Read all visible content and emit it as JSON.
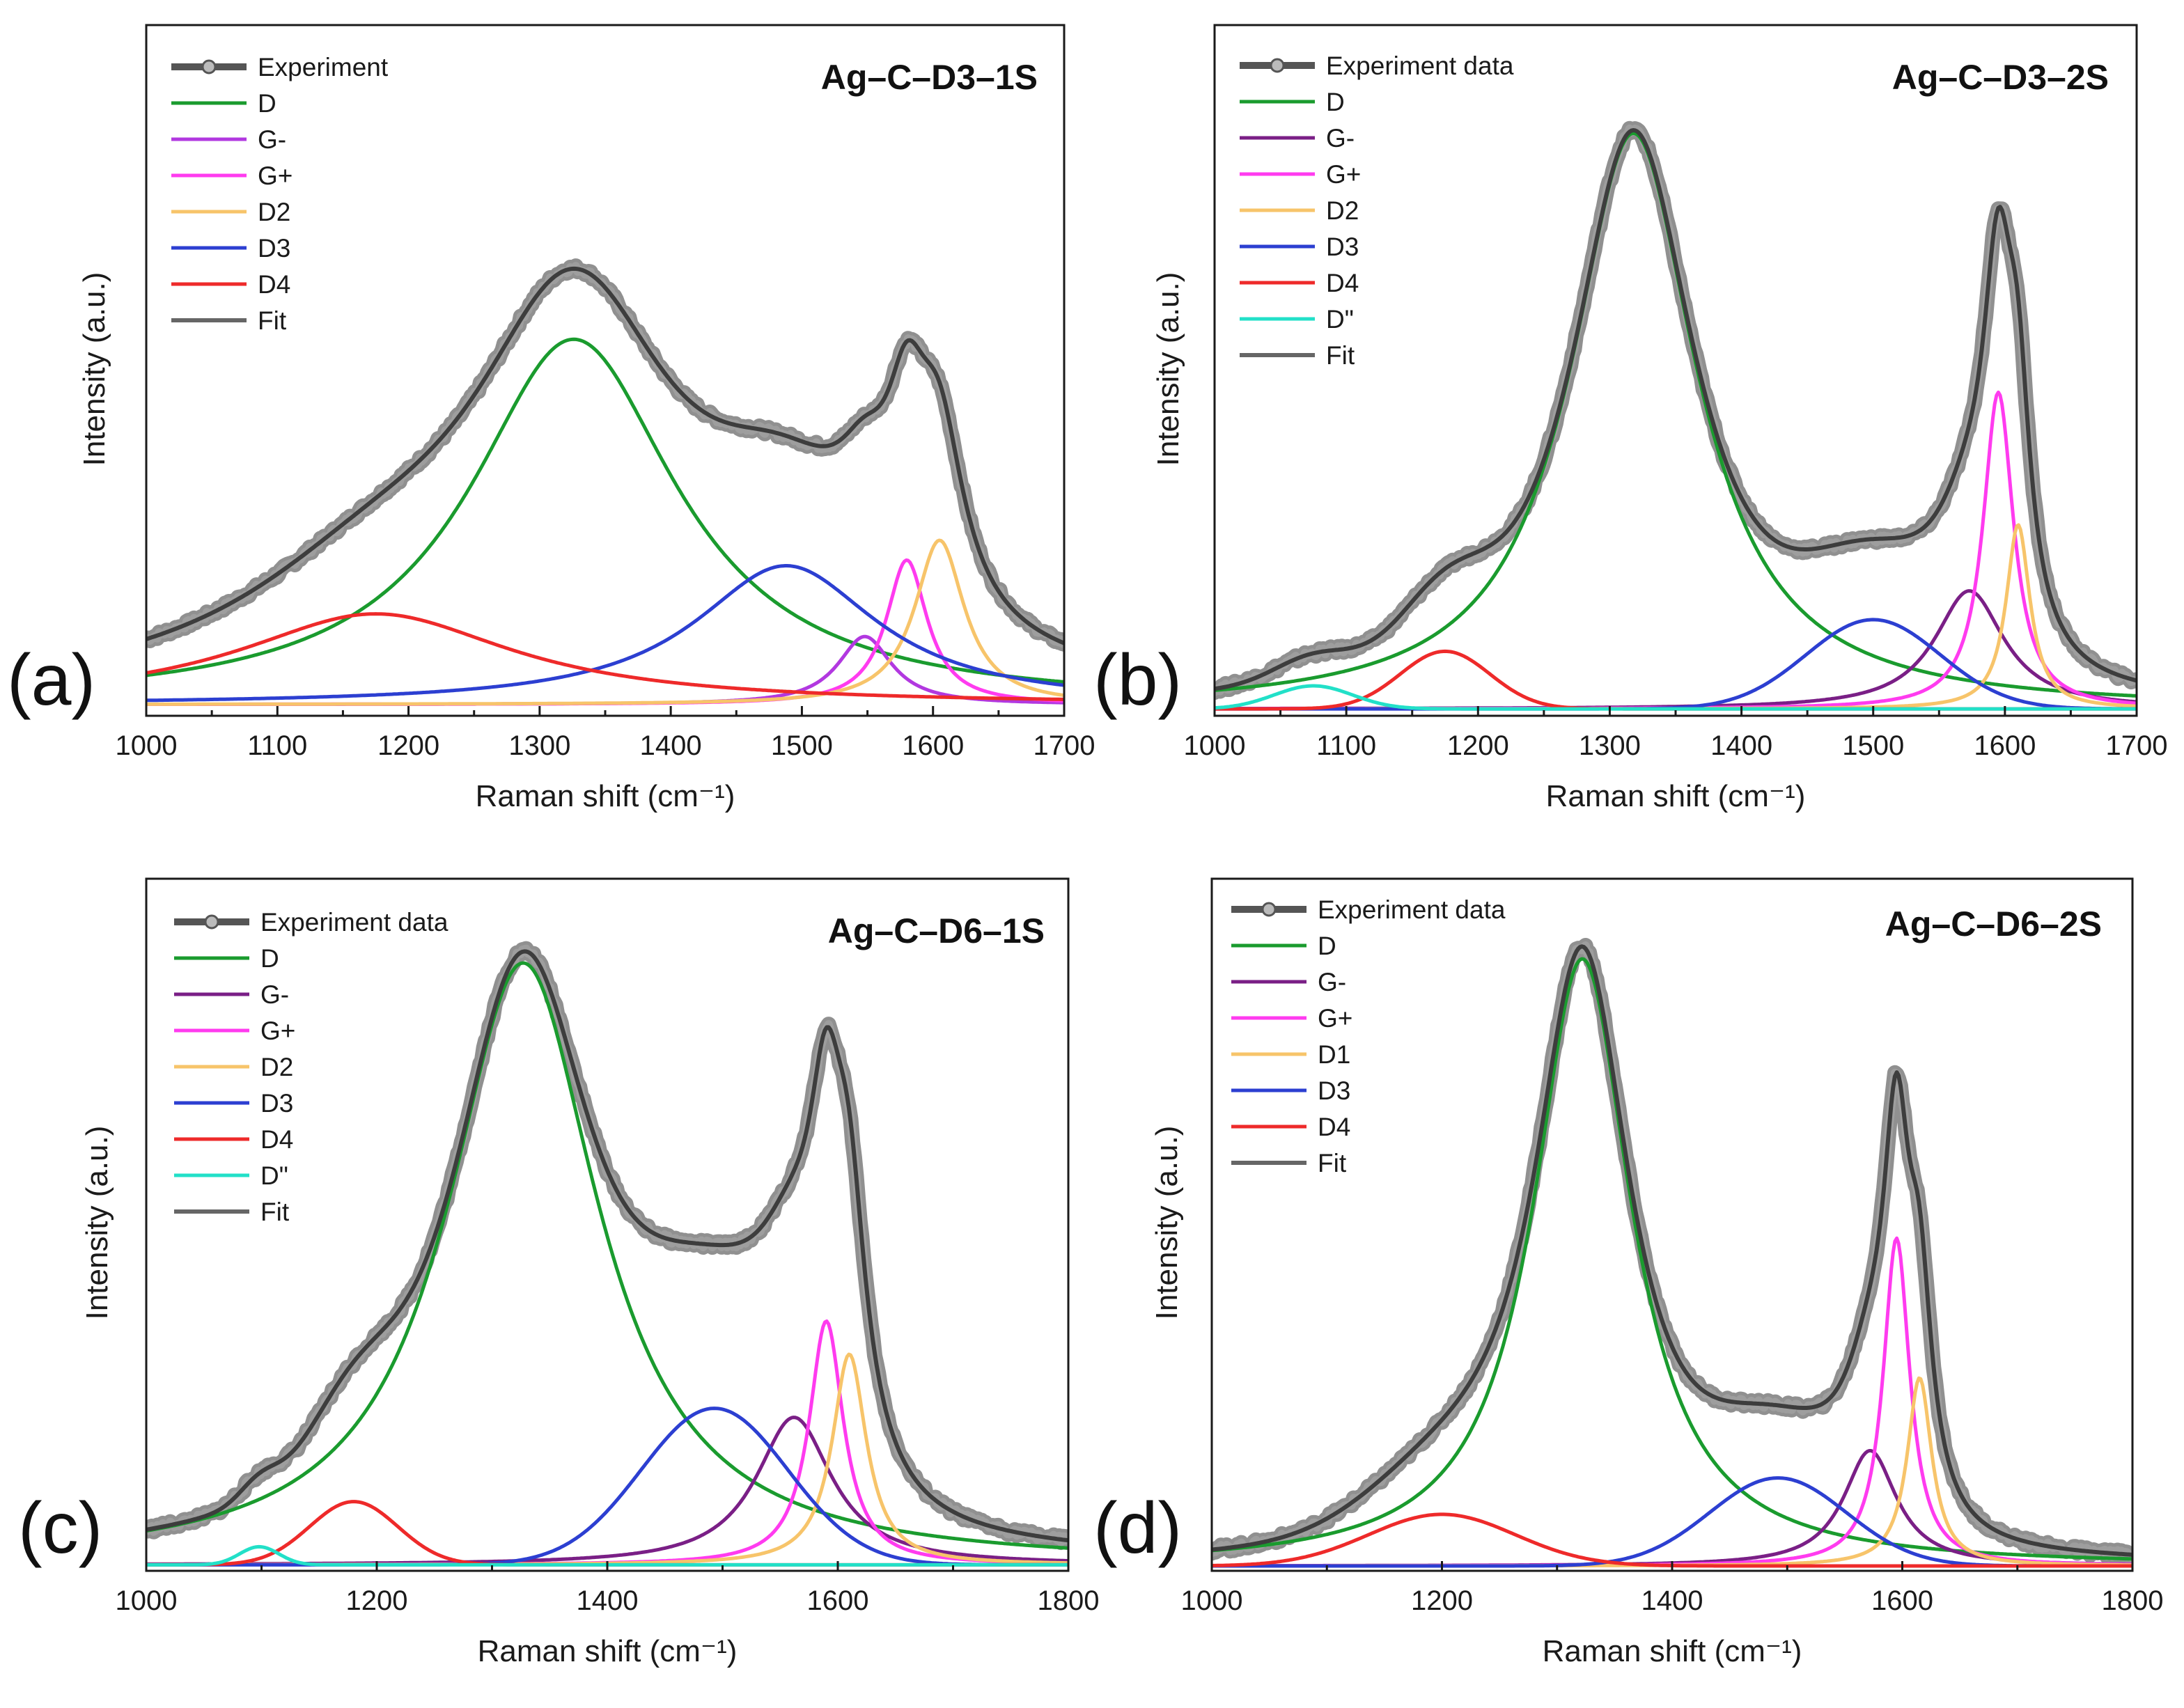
{
  "chart_data": [
    {
      "type": "line",
      "panel_letter": "(a)",
      "title": "Ag–C–D3–1S",
      "xlabel": "Raman shift (cm⁻¹)",
      "ylabel": "Intensity (a.u.)",
      "xlim": [
        1000,
        1700
      ],
      "ylim": [
        0,
        1.22
      ],
      "xticks": [
        1000,
        1100,
        1200,
        1300,
        1400,
        1500,
        1600,
        1700
      ],
      "y_tick_labels": false,
      "legend_position": "top-left",
      "legend": [
        "Experiment",
        "D",
        "G-",
        "G+",
        "D2",
        "D3",
        "D4",
        "Fit"
      ],
      "colors": {
        "Experiment": "#555555",
        "Fit": "#888888",
        "D": "#1a9b2e",
        "G-": "#b238e0",
        "G+": "#ff3bef",
        "D2": "#f7c46a",
        "D3": "#2c3fd1",
        "D4": "#ee2a2a"
      },
      "components": [
        {
          "name": "D",
          "center": 1326,
          "height": 0.645,
          "hwhm": 96
        },
        {
          "name": "G-",
          "center": 1548,
          "height": 0.12,
          "hwhm": 25
        },
        {
          "name": "G+",
          "center": 1580,
          "height": 0.255,
          "hwhm": 19
        },
        {
          "name": "D2",
          "center": 1605,
          "height": 0.29,
          "hwhm": 23
        },
        {
          "name": "D3",
          "center": 1488,
          "height": 0.245,
          "hwhm": 85
        },
        {
          "name": "D4",
          "center": 1175,
          "height": 0.16,
          "hwhm": 128
        },
        {
          "name": "Fit"
        },
        {
          "name": "Experiment"
        }
      ],
      "baseline": 0.02
    },
    {
      "type": "line",
      "panel_letter": "(b)",
      "title": "Ag–C–D3–2S",
      "xlabel": "Raman shift (cm⁻¹)",
      "ylabel": "Intensity (a.u.)",
      "xlim": [
        1000,
        1700
      ],
      "ylim": [
        0,
        1.2
      ],
      "xticks": [
        1000,
        1100,
        1200,
        1300,
        1400,
        1500,
        1600,
        1700
      ],
      "y_tick_labels": false,
      "legend_position": "top-left",
      "legend": [
        "Experiment data",
        "D",
        "G-",
        "G+",
        "D2",
        "D3",
        "D4",
        "D\"",
        "Fit"
      ],
      "colors": {
        "Experiment data": "#555555",
        "Fit": "#888888",
        "D": "#1a9b2e",
        "G-": "#7a1f86",
        "G+": "#ff3bef",
        "D2": "#f7c46a",
        "D3": "#2c3fd1",
        "D4": "#ee2a2a",
        "D\"": "#22e0c8"
      },
      "components": [
        {
          "name": "D",
          "center": 1318,
          "height": 1.0,
          "hwhm": 58
        },
        {
          "name": "G-",
          "center": 1573,
          "height": 0.205,
          "hwhm": 32
        },
        {
          "name": "G+",
          "center": 1595,
          "height": 0.55,
          "hwhm": 14
        },
        {
          "name": "D2",
          "center": 1610,
          "height": 0.32,
          "hwhm": 11
        },
        {
          "name": "D3",
          "center": 1500,
          "height": 0.155,
          "hwhm": 60,
          "shape": "gauss"
        },
        {
          "name": "D4",
          "center": 1175,
          "height": 0.1,
          "hwhm": 40,
          "shape": "gauss"
        },
        {
          "name": "D\"",
          "center": 1075,
          "height": 0.04,
          "hwhm": 35,
          "shape": "gauss"
        },
        {
          "name": "Fit"
        },
        {
          "name": "Experiment data"
        }
      ],
      "baseline": 0.012
    },
    {
      "type": "line",
      "panel_letter": "(c)",
      "title": "Ag–C–D6–1S",
      "xlabel": "Raman shift (cm⁻¹)",
      "ylabel": "Intensity (a.u.)",
      "xlim": [
        1000,
        1800
      ],
      "ylim": [
        0,
        1.15
      ],
      "xticks": [
        1000,
        1200,
        1400,
        1600,
        1800
      ],
      "y_tick_labels": false,
      "legend_position": "top-left",
      "legend": [
        "Experiment data",
        "D",
        "G-",
        "G+",
        "D2",
        "D3",
        "D4",
        "D\"",
        "Fit"
      ],
      "colors": {
        "Experiment data": "#555555",
        "Fit": "#888888",
        "D": "#1a9b2e",
        "G-": "#7a1f86",
        "G+": "#ff3bef",
        "D2": "#f7c46a",
        "D3": "#2c3fd1",
        "D4": "#ee2a2a",
        "D\"": "#22e0c8"
      },
      "components": [
        {
          "name": "D",
          "center": 1327,
          "height": 1.0,
          "hwhm": 80
        },
        {
          "name": "G-",
          "center": 1562,
          "height": 0.245,
          "hwhm": 40
        },
        {
          "name": "G+",
          "center": 1590,
          "height": 0.405,
          "hwhm": 18
        },
        {
          "name": "D2",
          "center": 1610,
          "height": 0.35,
          "hwhm": 18
        },
        {
          "name": "D3",
          "center": 1493,
          "height": 0.26,
          "hwhm": 75,
          "shape": "gauss"
        },
        {
          "name": "D4",
          "center": 1180,
          "height": 0.105,
          "hwhm": 45,
          "shape": "gauss"
        },
        {
          "name": "D\"",
          "center": 1098,
          "height": 0.03,
          "hwhm": 20,
          "shape": "gauss"
        },
        {
          "name": "Fit"
        },
        {
          "name": "Experiment data"
        }
      ],
      "baseline": 0.01
    },
    {
      "type": "line",
      "panel_letter": "(d)",
      "title": "Ag–C–D6–2S",
      "xlabel": "Raman shift (cm⁻¹)",
      "ylabel": "Intensity (a.u.)",
      "xlim": [
        1000,
        1800
      ],
      "ylim": [
        0,
        1.14
      ],
      "xticks": [
        1000,
        1200,
        1400,
        1600,
        1800
      ],
      "y_tick_labels": false,
      "legend_position": "top-left",
      "legend": [
        "Experiment data",
        "D",
        "G-",
        "G+",
        "D1",
        "D3",
        "D4",
        "Fit"
      ],
      "colors": {
        "Experiment data": "#555555",
        "Fit": "#888888",
        "D": "#1a9b2e",
        "G-": "#7a1f86",
        "G+": "#ff3bef",
        "D1": "#f7c46a",
        "D3": "#2c3fd1",
        "D4": "#ee2a2a"
      },
      "components": [
        {
          "name": "D",
          "center": 1322,
          "height": 1.0,
          "hwhm": 52
        },
        {
          "name": "G-",
          "center": 1572,
          "height": 0.19,
          "hwhm": 28
        },
        {
          "name": "G+",
          "center": 1595,
          "height": 0.54,
          "hwhm": 14
        },
        {
          "name": "D1",
          "center": 1615,
          "height": 0.31,
          "hwhm": 13
        },
        {
          "name": "D3",
          "center": 1492,
          "height": 0.145,
          "hwhm": 70,
          "shape": "gauss"
        },
        {
          "name": "D4",
          "center": 1200,
          "height": 0.085,
          "hwhm": 75,
          "shape": "gauss"
        },
        {
          "name": "Fit"
        },
        {
          "name": "Experiment data"
        }
      ],
      "baseline": 0.008
    }
  ]
}
